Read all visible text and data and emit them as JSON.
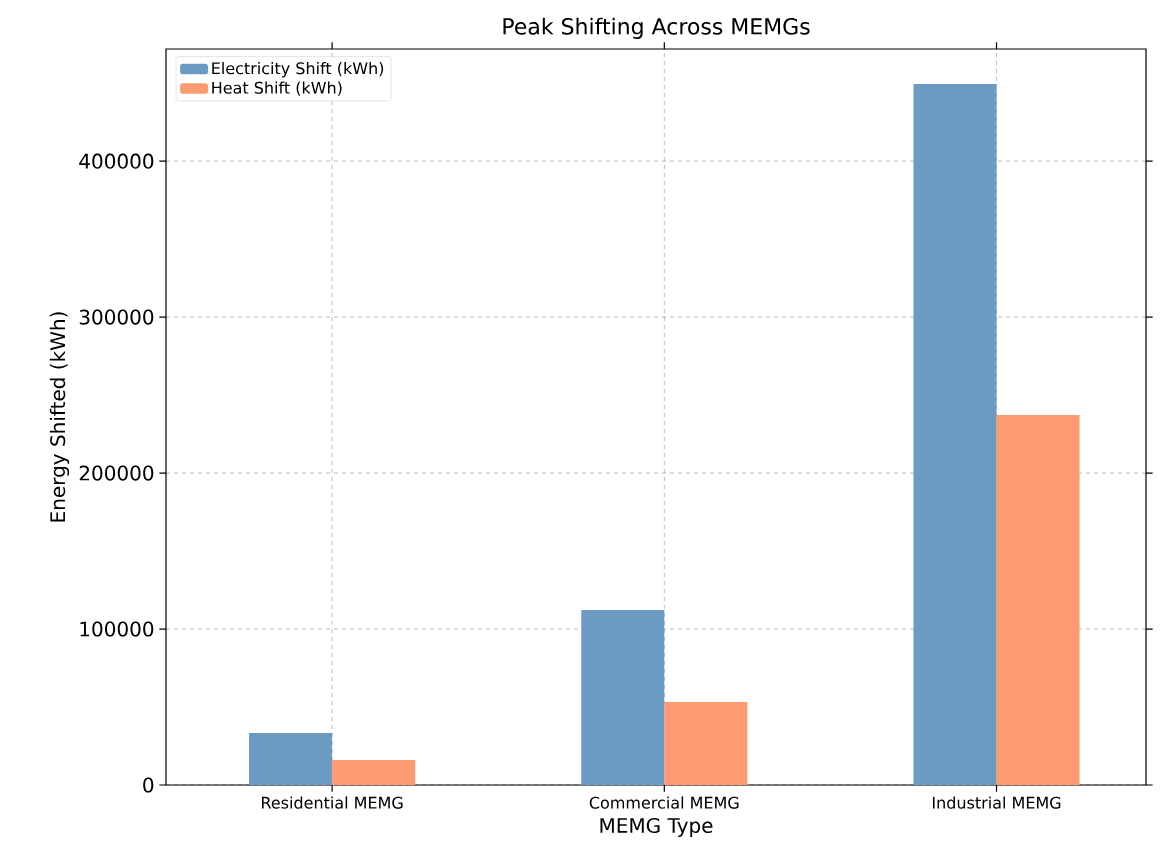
{
  "chart_data": {
    "type": "bar",
    "title": "Peak Shifting Across MEMGs",
    "xlabel": "MEMG Type",
    "ylabel": "Energy Shifted (kWh)",
    "categories": [
      "Residential MEMG",
      "Commercial MEMG",
      "Industrial MEMG"
    ],
    "series": [
      {
        "name": "Electricity Shift (kWh)",
        "color": "#6b9bc3",
        "values": [
          33300,
          112200,
          449400
        ]
      },
      {
        "name": "Heat Shift (kWh)",
        "color": "#fe9a72",
        "values": [
          16000,
          53200,
          237200
        ]
      }
    ],
    "ylim": [
      0,
      471900
    ],
    "yticks": [
      0,
      100000,
      200000,
      300000,
      400000
    ],
    "grid": true,
    "legend": "top left"
  }
}
